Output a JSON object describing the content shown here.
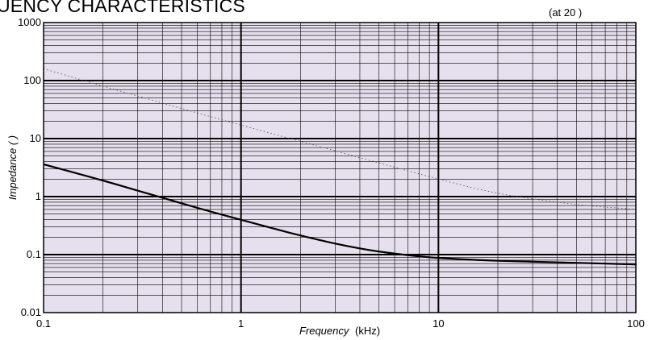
{
  "header": {
    "title": "UENCY CHARACTERISTICS",
    "note": "(at 20 )"
  },
  "chart_data": {
    "type": "line",
    "title": "UENCY CHARACTERISTICS",
    "xlabel_italic": "Frequency",
    "xlabel_unit": "(kHz)",
    "ylabel": "Impedance (  )",
    "xscale": "log",
    "yscale": "log",
    "xlim": [
      0.1,
      100
    ],
    "ylim": [
      0.01,
      1000
    ],
    "x_ticks": [
      "0.1",
      "1",
      "10",
      "100"
    ],
    "y_ticks": [
      "1000",
      "100",
      "10",
      "1",
      "0.1",
      "0.01"
    ],
    "grid": true,
    "background": "#e6e0ee",
    "series": [
      {
        "style": "dotted",
        "color": "#555555",
        "x": [
          0.1,
          0.2,
          0.5,
          1,
          2,
          5,
          10,
          20,
          50,
          100
        ],
        "y": [
          160,
          80,
          33,
          17,
          9,
          3.8,
          2,
          1.1,
          0.72,
          0.6
        ]
      },
      {
        "style": "solid",
        "color": "#000000",
        "x": [
          0.1,
          0.2,
          0.4,
          0.7,
          1,
          2,
          4,
          7,
          10,
          20,
          50,
          100
        ],
        "y": [
          3.6,
          1.9,
          0.95,
          0.55,
          0.4,
          0.21,
          0.125,
          0.097,
          0.087,
          0.078,
          0.072,
          0.068
        ]
      }
    ]
  }
}
